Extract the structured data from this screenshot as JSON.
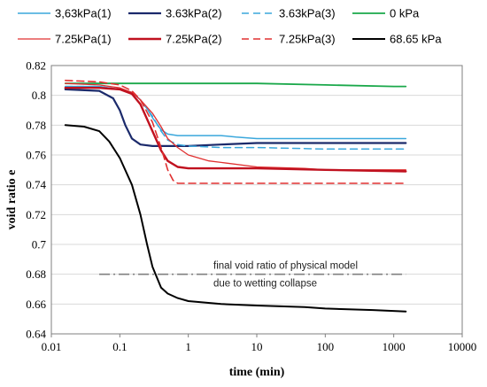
{
  "chart_data": {
    "type": "line",
    "xlabel": "time (min)",
    "ylabel": "void ratio e",
    "x_scale": "log",
    "xlim": [
      0.01,
      10000
    ],
    "ylim": [
      0.64,
      0.82
    ],
    "x_ticks": [
      "0.01",
      "0.1",
      "1",
      "10",
      "100",
      "1000",
      "10000"
    ],
    "y_ticks": [
      "0.64",
      "0.66",
      "0.68",
      "0.7",
      "0.72",
      "0.74",
      "0.76",
      "0.78",
      "0.8",
      "0.82"
    ],
    "grid": "horizontal",
    "legend_position": "top",
    "annotation": {
      "lines": [
        "final void ratio of physical model",
        "due to wetting collapse"
      ],
      "y": 0.68,
      "x_range": [
        0.05,
        1500
      ],
      "style": "dash-dot",
      "color": "#808080"
    },
    "series": [
      {
        "name": "3,63kPa(1)",
        "color": "#3aa7dc",
        "dash": "solid",
        "width": 1.5,
        "points": [
          [
            0.016,
            0.806
          ],
          [
            0.05,
            0.806
          ],
          [
            0.1,
            0.804
          ],
          [
            0.15,
            0.802
          ],
          [
            0.2,
            0.797
          ],
          [
            0.25,
            0.791
          ],
          [
            0.3,
            0.785
          ],
          [
            0.4,
            0.777
          ],
          [
            0.5,
            0.774
          ],
          [
            0.7,
            0.773
          ],
          [
            1,
            0.773
          ],
          [
            2,
            0.773
          ],
          [
            3,
            0.773
          ],
          [
            5,
            0.772
          ],
          [
            10,
            0.771
          ],
          [
            50,
            0.771
          ],
          [
            100,
            0.771
          ],
          [
            500,
            0.771
          ],
          [
            1500,
            0.771
          ]
        ]
      },
      {
        "name": "3.63kPa(2)",
        "color": "#1b2a6b",
        "dash": "solid",
        "width": 2.2,
        "points": [
          [
            0.016,
            0.804
          ],
          [
            0.05,
            0.803
          ],
          [
            0.08,
            0.798
          ],
          [
            0.1,
            0.79
          ],
          [
            0.12,
            0.78
          ],
          [
            0.15,
            0.771
          ],
          [
            0.2,
            0.767
          ],
          [
            0.3,
            0.766
          ],
          [
            0.5,
            0.766
          ],
          [
            1,
            0.766
          ],
          [
            3,
            0.767
          ],
          [
            10,
            0.768
          ],
          [
            100,
            0.768
          ],
          [
            1500,
            0.768
          ]
        ]
      },
      {
        "name": "3.63kPa(3)",
        "color": "#3aa7dc",
        "dash": "8,5",
        "width": 1.5,
        "points": [
          [
            0.016,
            0.806
          ],
          [
            0.05,
            0.806
          ],
          [
            0.1,
            0.804
          ],
          [
            0.15,
            0.802
          ],
          [
            0.2,
            0.797
          ],
          [
            0.3,
            0.786
          ],
          [
            0.4,
            0.776
          ],
          [
            0.5,
            0.77
          ],
          [
            0.7,
            0.767
          ],
          [
            1,
            0.766
          ],
          [
            3,
            0.765
          ],
          [
            10,
            0.765
          ],
          [
            100,
            0.764
          ],
          [
            1500,
            0.764
          ]
        ]
      },
      {
        "name": "0 kPa",
        "color": "#1aa84a",
        "dash": "solid",
        "width": 1.8,
        "points": [
          [
            0.016,
            0.808
          ],
          [
            0.1,
            0.808
          ],
          [
            1,
            0.808
          ],
          [
            10,
            0.808
          ],
          [
            100,
            0.807
          ],
          [
            1000,
            0.806
          ],
          [
            1500,
            0.806
          ]
        ]
      },
      {
        "name": "7.25kPa(1)",
        "color": "#e03030",
        "dash": "solid",
        "width": 1.3,
        "points": [
          [
            0.016,
            0.808
          ],
          [
            0.05,
            0.807
          ],
          [
            0.1,
            0.805
          ],
          [
            0.15,
            0.802
          ],
          [
            0.2,
            0.797
          ],
          [
            0.3,
            0.788
          ],
          [
            0.4,
            0.779
          ],
          [
            0.5,
            0.771
          ],
          [
            0.7,
            0.765
          ],
          [
            1,
            0.76
          ],
          [
            2,
            0.756
          ],
          [
            3,
            0.755
          ],
          [
            10,
            0.752
          ],
          [
            50,
            0.751
          ],
          [
            100,
            0.75
          ],
          [
            500,
            0.75
          ],
          [
            1500,
            0.75
          ]
        ]
      },
      {
        "name": "7.25kPa(2)",
        "color": "#c0111f",
        "dash": "solid",
        "width": 2.4,
        "points": [
          [
            0.016,
            0.805
          ],
          [
            0.05,
            0.805
          ],
          [
            0.1,
            0.804
          ],
          [
            0.15,
            0.801
          ],
          [
            0.2,
            0.794
          ],
          [
            0.3,
            0.776
          ],
          [
            0.4,
            0.763
          ],
          [
            0.5,
            0.756
          ],
          [
            0.7,
            0.752
          ],
          [
            1,
            0.751
          ],
          [
            3,
            0.751
          ],
          [
            10,
            0.751
          ],
          [
            100,
            0.75
          ],
          [
            1500,
            0.749
          ]
        ]
      },
      {
        "name": "7.25kPa(3)",
        "color": "#e03030",
        "dash": "8,5",
        "width": 1.6,
        "points": [
          [
            0.016,
            0.81
          ],
          [
            0.05,
            0.809
          ],
          [
            0.1,
            0.807
          ],
          [
            0.15,
            0.803
          ],
          [
            0.2,
            0.797
          ],
          [
            0.3,
            0.782
          ],
          [
            0.4,
            0.765
          ],
          [
            0.5,
            0.75
          ],
          [
            0.6,
            0.743
          ],
          [
            0.7,
            0.741
          ],
          [
            1,
            0.741
          ],
          [
            10,
            0.741
          ],
          [
            100,
            0.741
          ],
          [
            1500,
            0.741
          ]
        ]
      },
      {
        "name": "68.65 kPa",
        "color": "#000000",
        "dash": "solid",
        "width": 2.0,
        "points": [
          [
            0.016,
            0.78
          ],
          [
            0.03,
            0.779
          ],
          [
            0.05,
            0.776
          ],
          [
            0.07,
            0.769
          ],
          [
            0.1,
            0.758
          ],
          [
            0.15,
            0.74
          ],
          [
            0.2,
            0.72
          ],
          [
            0.25,
            0.7
          ],
          [
            0.3,
            0.685
          ],
          [
            0.4,
            0.671
          ],
          [
            0.5,
            0.667
          ],
          [
            0.7,
            0.664
          ],
          [
            1,
            0.662
          ],
          [
            3,
            0.66
          ],
          [
            10,
            0.659
          ],
          [
            50,
            0.658
          ],
          [
            100,
            0.657
          ],
          [
            500,
            0.656
          ],
          [
            1500,
            0.655
          ]
        ]
      }
    ]
  }
}
